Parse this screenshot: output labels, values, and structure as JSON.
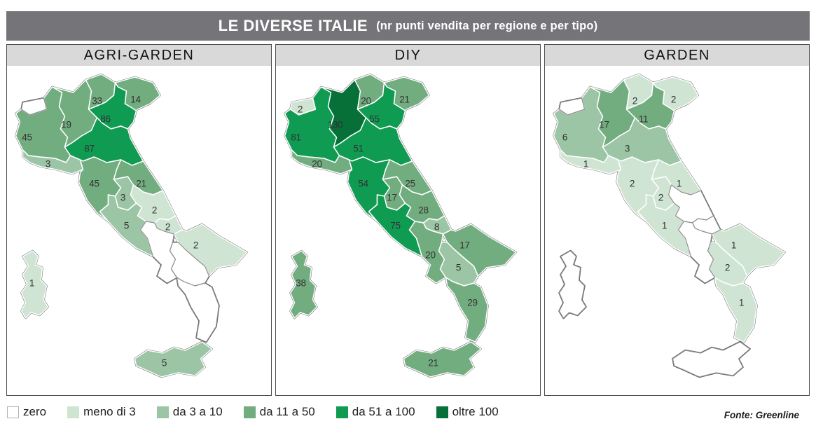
{
  "title": {
    "main": "LE DIVERSE ITALIE",
    "sub": "(nr punti vendita per regione e per tipo)"
  },
  "source": "Fonte: Greenline",
  "panels": [
    {
      "title": "AGRI-GARDEN"
    },
    {
      "title": "DIY"
    },
    {
      "title": "GARDEN"
    }
  ],
  "legend": [
    {
      "label": "zero",
      "class": "zero",
      "color": "#ffffff"
    },
    {
      "label": "meno di 3",
      "class": "lt3",
      "color": "#cfe4d3"
    },
    {
      "label": "da 3 a 10",
      "class": "c3_10",
      "color": "#9cc5a5"
    },
    {
      "label": "da 11 a 50",
      "class": "c11_50",
      "color": "#72ad80"
    },
    {
      "label": "da 51 a 100",
      "class": "c51_100",
      "color": "#0f9b52"
    },
    {
      "label": "oltre 100",
      "class": "gt100",
      "color": "#076f38"
    }
  ],
  "chart_data": {
    "type": "choropleth",
    "title": "LE DIVERSE ITALIE",
    "subtitle": "nr punti vendita per regione e per tipo",
    "bins": [
      "zero",
      "meno di 3",
      "da 3 a 10",
      "da 11 a 50",
      "da 51 a 100",
      "oltre 100"
    ],
    "region_names": {
      "VDA": "Valle d'Aosta",
      "PIE": "Piemonte",
      "LOM": "Lombardia",
      "TAA": "Trentino-Alto Adige",
      "VEN": "Veneto",
      "FVG": "Friuli-Venezia Giulia",
      "LIG": "Liguria",
      "EMR": "Emilia-Romagna",
      "TOS": "Toscana",
      "UMB": "Umbria",
      "MAR": "Marche",
      "LAZ": "Lazio",
      "ABR": "Abruzzo",
      "MOL": "Molise",
      "CAM": "Campania",
      "PUG": "Puglia",
      "BAS": "Basilicata",
      "CAL": "Calabria",
      "SIC": "Sicilia",
      "SAR": "Sardegna"
    },
    "series": [
      {
        "name": "AGRI-GARDEN",
        "values": {
          "VDA": 0,
          "PIE": 45,
          "LOM": 19,
          "TAA": 33,
          "VEN": 86,
          "FVG": 14,
          "LIG": 3,
          "EMR": 87,
          "TOS": 45,
          "UMB": 3,
          "MAR": 21,
          "LAZ": 5,
          "ABR": 2,
          "MOL": 2,
          "CAM": 0,
          "PUG": 2,
          "BAS": 0,
          "CAL": 0,
          "SIC": 5,
          "SAR": 1
        }
      },
      {
        "name": "DIY",
        "values": {
          "VDA": 2,
          "PIE": 81,
          "LOM": 130,
          "TAA": 20,
          "VEN": 55,
          "FVG": 21,
          "LIG": 20,
          "EMR": 51,
          "TOS": 54,
          "UMB": 17,
          "MAR": 25,
          "LAZ": 75,
          "ABR": 28,
          "MOL": 8,
          "CAM": 20,
          "PUG": 17,
          "BAS": 5,
          "CAL": 29,
          "SIC": 21,
          "SAR": 38
        }
      },
      {
        "name": "GARDEN",
        "values": {
          "VDA": 0,
          "PIE": 6,
          "LOM": 17,
          "TAA": 2,
          "VEN": 11,
          "FVG": 2,
          "LIG": 1,
          "EMR": 3,
          "TOS": 2,
          "UMB": 2,
          "MAR": 1,
          "LAZ": 1,
          "ABR": 0,
          "MOL": 0,
          "CAM": 0,
          "PUG": 1,
          "BAS": 2,
          "CAL": 1,
          "SIC": 0,
          "SAR": 0
        }
      }
    ]
  }
}
